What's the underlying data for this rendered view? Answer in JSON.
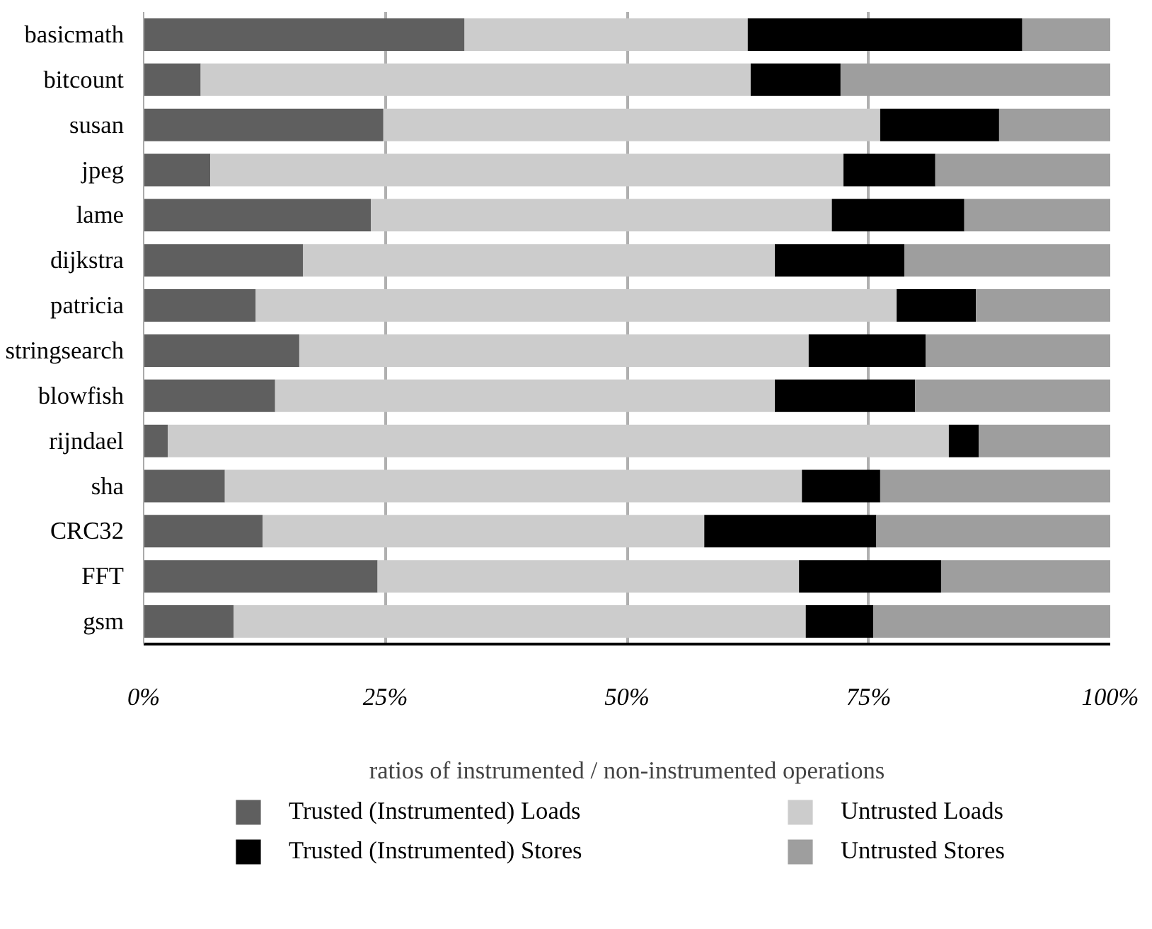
{
  "chart_data": {
    "type": "bar",
    "orientation": "horizontal",
    "stacked": true,
    "xlabel": "ratios of instrumented / non-instrumented operations",
    "categories": [
      "basicmath",
      "bitcount",
      "susan",
      "jpeg",
      "lame",
      "dijkstra",
      "patricia",
      "stringsearch",
      "blowfish",
      "rijndael",
      "sha",
      "CRC32",
      "FFT",
      "gsm"
    ],
    "series": [
      {
        "name": "Trusted (Instrumented) Loads",
        "color": "#5f5f5f",
        "values": [
          33.2,
          5.9,
          24.8,
          6.9,
          23.5,
          16.5,
          11.6,
          16.1,
          13.6,
          2.5,
          8.4,
          12.3,
          24.2,
          9.3
        ]
      },
      {
        "name": "Untrusted Loads",
        "color": "#cccccc",
        "values": [
          29.3,
          56.9,
          51.4,
          65.5,
          47.7,
          48.8,
          66.3,
          52.7,
          51.7,
          80.8,
          59.7,
          45.7,
          43.6,
          59.2
        ]
      },
      {
        "name": "Trusted (Instrumented) Stores",
        "color": "#000000",
        "values": [
          28.4,
          9.3,
          12.3,
          9.5,
          13.7,
          13.4,
          8.2,
          12.1,
          14.5,
          3.1,
          8.1,
          17.8,
          14.7,
          7.0
        ]
      },
      {
        "name": "Untrusted Stores",
        "color": "#9e9e9e",
        "values": [
          9.1,
          27.9,
          11.5,
          18.1,
          15.1,
          21.3,
          13.9,
          19.1,
          20.2,
          13.6,
          23.8,
          24.2,
          17.5,
          24.5
        ]
      }
    ],
    "xlim": [
      0,
      100
    ],
    "xticks": [
      {
        "value": 0,
        "label": "0%"
      },
      {
        "value": 25,
        "label": "25%"
      },
      {
        "value": 50,
        "label": "50%"
      },
      {
        "value": 75,
        "label": "75%"
      },
      {
        "value": 100,
        "label": "100%"
      }
    ],
    "grid": "x",
    "legend": "bottom"
  }
}
